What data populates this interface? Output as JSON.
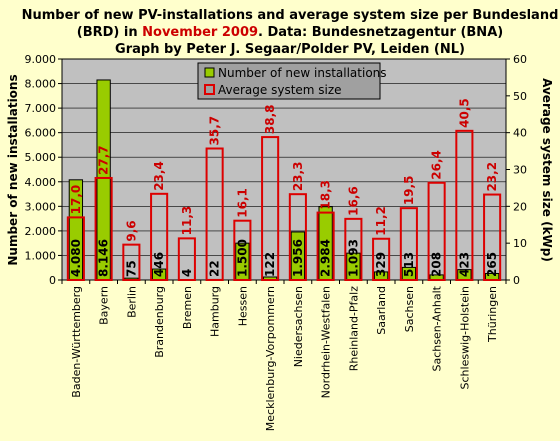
{
  "title": {
    "line1": "Number of new PV-installations and average system size per Bundesland",
    "line2_pre": "(BRD) in ",
    "line2_highlight": "November 2009",
    "line2_post": ". Data: Bundesnetzagentur (BNA)",
    "line3": "Graph by Peter J. Segaar/Polder PV, Leiden (NL)"
  },
  "colors": {
    "bar": "#99cc00",
    "line": "#dd0000",
    "plot_bg": "#c0c0c0",
    "page_bg": "#ffffcc",
    "highlight": "#cc0000"
  },
  "chart_data": {
    "type": "bar",
    "categories": [
      "Baden-Württemberg",
      "Bayern",
      "Berlin",
      "Brandenburg",
      "Bremen",
      "Hamburg",
      "Hessen",
      "Mecklenburg-Vorpommern",
      "Niedersachsen",
      "Nordrhein-Westfalen",
      "Rheinland-Pfalz",
      "Saarland",
      "Sachsen",
      "Sachsen-Anhalt",
      "Schleswig-Holstein",
      "Thüringen"
    ],
    "series": [
      {
        "name": "Number of new installations",
        "axis": "left",
        "values": [
          4080,
          8146,
          75,
          446,
          4,
          22,
          1500,
          122,
          1956,
          2984,
          1093,
          329,
          513,
          208,
          423,
          265
        ],
        "labels": [
          "4.080",
          "8.146",
          "75",
          "446",
          "4",
          "22",
          "1.500",
          "122",
          "1.956",
          "2.984",
          "1.093",
          "329",
          "513",
          "208",
          "423",
          "265"
        ]
      },
      {
        "name": "Average system size",
        "axis": "right",
        "values": [
          17.0,
          27.7,
          9.6,
          23.4,
          11.3,
          35.7,
          16.1,
          38.8,
          23.3,
          18.3,
          16.6,
          11.2,
          19.5,
          26.4,
          40.5,
          23.2
        ],
        "labels": [
          "17,0",
          "27,7",
          "9,6",
          "23,4",
          "11,3",
          "35,7",
          "16,1",
          "38,8",
          "23,3",
          "18,3",
          "16,6",
          "11,2",
          "19,5",
          "26,4",
          "40,5",
          "23,2"
        ]
      }
    ],
    "ylabel": "Number of new installations",
    "y2label": "Average system size (kWp)",
    "ylim": [
      0,
      9000
    ],
    "y2lim": [
      0,
      60
    ],
    "yticks": [
      "0",
      "1.000",
      "2.000",
      "3.000",
      "4.000",
      "5.000",
      "6.000",
      "7.000",
      "8.000",
      "9.000"
    ],
    "y2ticks": [
      "0",
      "10",
      "20",
      "30",
      "40",
      "50",
      "60"
    ],
    "legend_position": "top-center",
    "grid": true
  }
}
